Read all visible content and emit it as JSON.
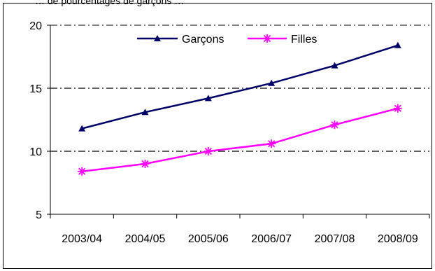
{
  "header_fragment": "… de pourcentages de garçons …",
  "chart_data": {
    "type": "line",
    "categories": [
      "2003/04",
      "2004/05",
      "2005/06",
      "2006/07",
      "2007/08",
      "2008/09"
    ],
    "series": [
      {
        "name": "Garçons",
        "values": [
          11.8,
          13.1,
          14.2,
          15.4,
          16.8,
          18.4
        ],
        "color": "#000066",
        "marker": "triangle"
      },
      {
        "name": "Filles",
        "values": [
          8.4,
          9.0,
          10.0,
          10.6,
          12.1,
          13.4
        ],
        "color": "#ff00ff",
        "marker": "asterisk"
      }
    ],
    "yticks": [
      5,
      10,
      15,
      20
    ],
    "ylim": [
      5,
      20
    ],
    "grid": "dash-dot horizontal at 10, 15, 20",
    "legend_position": "top-center",
    "title": "",
    "xlabel": "",
    "ylabel": ""
  }
}
